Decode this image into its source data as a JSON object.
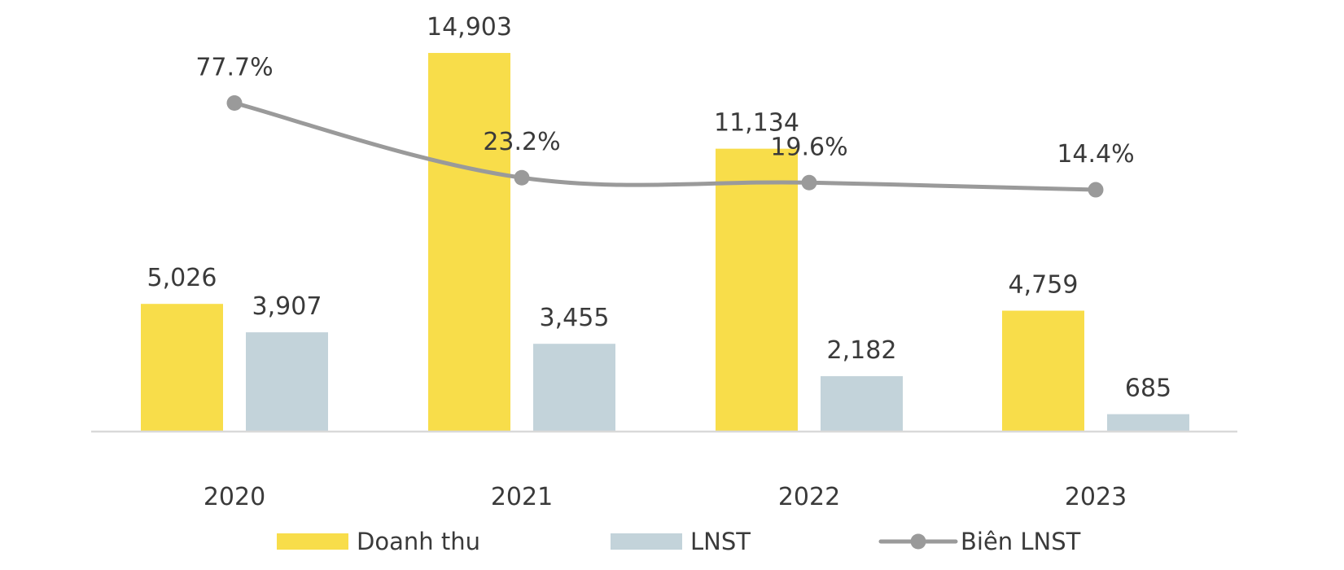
{
  "chart_data": {
    "type": "bar",
    "categories": [
      "2020",
      "2021",
      "2022",
      "2023"
    ],
    "series": [
      {
        "name": "Doanh thu",
        "kind": "bar",
        "color": "#F8DD4A",
        "values": [
          5026,
          14903,
          11134,
          4759
        ],
        "labels": [
          "5,026",
          "14,903",
          "11,134",
          "4,759"
        ]
      },
      {
        "name": "LNST",
        "kind": "bar",
        "color": "#C3D3DA",
        "values": [
          3907,
          3455,
          2182,
          685
        ],
        "labels": [
          "3,907",
          "3,455",
          "2,182",
          "685"
        ]
      },
      {
        "name": "Biên LNST",
        "kind": "line",
        "color": "#9A9A9A",
        "axis": "secondary",
        "values": [
          77.7,
          23.2,
          19.6,
          14.4
        ],
        "labels": [
          "77.7%",
          "23.2%",
          "19.6%",
          "14.4%"
        ]
      }
    ],
    "title": "",
    "xlabel": "",
    "ylabel": "",
    "ylim": [
      0,
      15000
    ],
    "y2lim": [
      -162,
      116
    ],
    "grid": false,
    "legend_position": "bottom",
    "axis_color": "#D9D9D9"
  }
}
